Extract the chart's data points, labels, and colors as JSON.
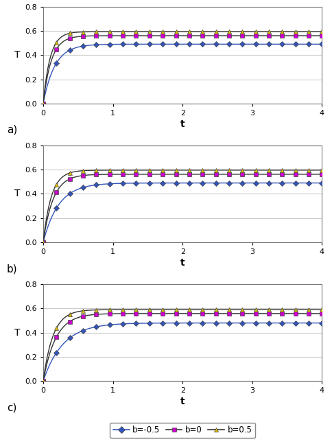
{
  "subplots": [
    {
      "label": "a)",
      "asymptotes": [
        0.49,
        0.56,
        0.593
      ],
      "rates": [
        6.0,
        8.5,
        10.0
      ],
      "overshoot": [
        0,
        0,
        0
      ]
    },
    {
      "label": "b)",
      "asymptotes": [
        0.49,
        0.562,
        0.596
      ],
      "rates": [
        4.5,
        7.0,
        8.5
      ],
      "overshoot": [
        0,
        0,
        0
      ]
    },
    {
      "label": "c)",
      "asymptotes": [
        0.48,
        0.558,
        0.59
      ],
      "rates": [
        3.5,
        5.5,
        7.0
      ],
      "overshoot": [
        0.03,
        0.04,
        0.05
      ]
    }
  ],
  "series_line_colors": [
    "#3355bb",
    "#333333",
    "#333333"
  ],
  "series_markercolors": [
    "#3355bb",
    "#cc00cc",
    "#ddbb00"
  ],
  "series_markers": [
    "D",
    "s",
    "^"
  ],
  "series_labels": [
    "b=-0.5",
    "b=0",
    "b=0.5"
  ],
  "xlim": [
    0,
    4
  ],
  "ylim": [
    0,
    0.8
  ],
  "xticks": [
    0,
    1,
    2,
    3,
    4
  ],
  "yticks": [
    0,
    0.2,
    0.4,
    0.6,
    0.8
  ],
  "xlabel": "t",
  "ylabel": "T",
  "background_color": "#ffffff",
  "grid_color": "#cccccc",
  "n_markers": 22
}
